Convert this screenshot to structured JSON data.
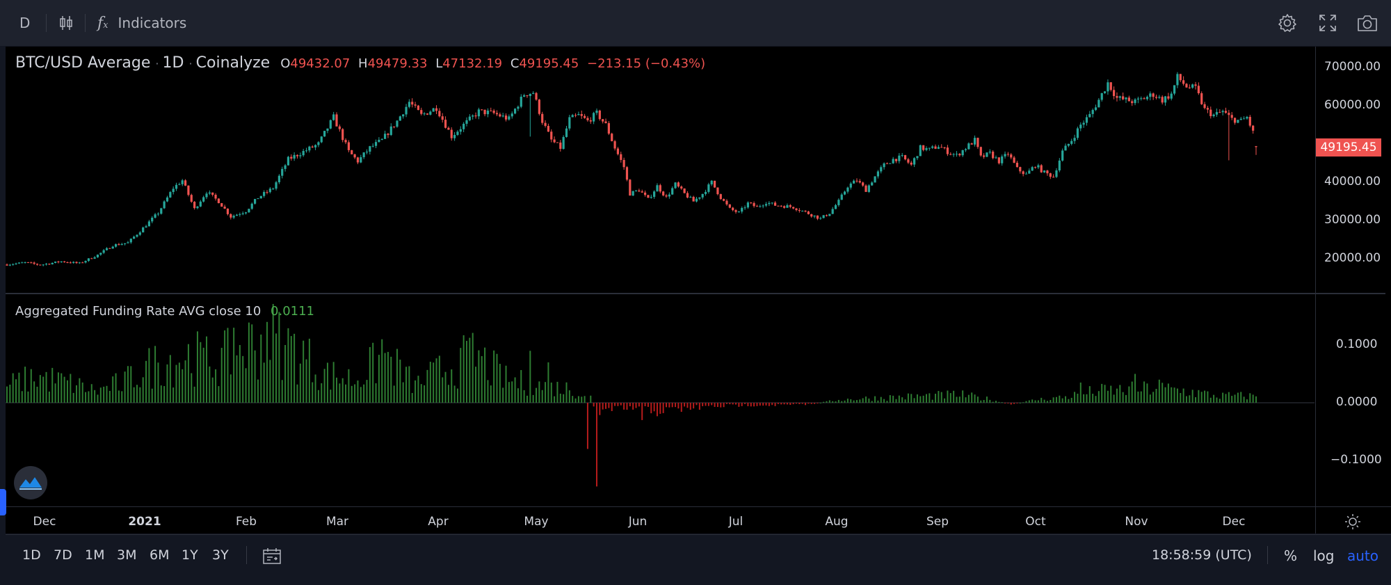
{
  "toolbar": {
    "interval": "D",
    "indicators_label": "Indicators",
    "icons": [
      "candles-icon",
      "fx-icon",
      "gear-icon",
      "fullscreen-icon",
      "camera-icon"
    ]
  },
  "legend": {
    "symbol": "BTC/USD Average",
    "interval": "1D",
    "source": "Coinalyze",
    "o_label": "O",
    "o_value": "49432.07",
    "h_label": "H",
    "h_value": "49479.33",
    "l_label": "L",
    "l_value": "47132.19",
    "c_label": "C",
    "c_value": "49195.45",
    "change": "−213.15 (−0.43%)"
  },
  "funding_legend": {
    "title": "Aggregated Funding Rate AVG close 10",
    "value": "0.0111"
  },
  "last_price_label": "49195.45",
  "colors": {
    "up": "#26a69a",
    "down": "#ef5350",
    "fund_up": "#2e7d32",
    "fund_down": "#b71c1c",
    "accent": "#2962ff"
  },
  "bottombar": {
    "ranges": [
      "1D",
      "7D",
      "1M",
      "3M",
      "6M",
      "1Y",
      "3Y"
    ],
    "clock": "18:58:59 (UTC)",
    "percent": "%",
    "log": "log",
    "auto": "auto"
  },
  "chart_data": [
    {
      "type": "candlestick",
      "title": "BTC/USD Average · 1D · Coinalyze",
      "ylim": [
        12000,
        72000
      ],
      "yticks": [
        "70000.00",
        "60000.00",
        "50000.00",
        "40000.00",
        "30000.00",
        "20000.00"
      ],
      "xticks": [
        "Dec",
        "2021",
        "Feb",
        "Mar",
        "Apr",
        "May",
        "Jun",
        "Jul",
        "Aug",
        "Sep",
        "Oct",
        "Nov",
        "Dec"
      ],
      "anchors_close": [
        [
          0,
          18500
        ],
        [
          6,
          19000
        ],
        [
          11,
          18400
        ],
        [
          18,
          19300
        ],
        [
          24,
          18800
        ],
        [
          30,
          21000
        ],
        [
          35,
          23500
        ],
        [
          40,
          24200
        ],
        [
          45,
          28000
        ],
        [
          50,
          32000
        ],
        [
          55,
          38500
        ],
        [
          58,
          40500
        ],
        [
          62,
          33000
        ],
        [
          66,
          37500
        ],
        [
          70,
          35000
        ],
        [
          74,
          31000
        ],
        [
          79,
          32500
        ],
        [
          83,
          36000
        ],
        [
          88,
          38500
        ],
        [
          93,
          46000
        ],
        [
          98,
          48000
        ],
        [
          103,
          50000
        ],
        [
          108,
          57000
        ],
        [
          113,
          48000
        ],
        [
          116,
          45500
        ],
        [
          120,
          49000
        ],
        [
          124,
          51000
        ],
        [
          129,
          56000
        ],
        [
          133,
          61000
        ],
        [
          137,
          57500
        ],
        [
          142,
          59500
        ],
        [
          147,
          52000
        ],
        [
          151,
          55000
        ],
        [
          156,
          58500
        ],
        [
          161,
          58000
        ],
        [
          166,
          56500
        ],
        [
          171,
          63000
        ],
        [
          174,
          63500
        ],
        [
          177,
          56000
        ],
        [
          180,
          51000
        ],
        [
          183,
          49000
        ],
        [
          186,
          56500
        ],
        [
          189,
          57500
        ],
        [
          192,
          56000
        ],
        [
          195,
          58000
        ],
        [
          198,
          55000
        ],
        [
          201,
          49000
        ],
        [
          204,
          44000
        ],
        [
          206,
          37000
        ],
        [
          209,
          38000
        ],
        [
          212,
          35500
        ],
        [
          215,
          39000
        ],
        [
          218,
          36000
        ],
        [
          221,
          39500
        ],
        [
          224,
          37000
        ],
        [
          227,
          35000
        ],
        [
          230,
          37000
        ],
        [
          233,
          40000
        ],
        [
          236,
          36000
        ],
        [
          239,
          33000
        ],
        [
          242,
          32000
        ],
        [
          245,
          34500
        ],
        [
          248,
          33500
        ],
        [
          251,
          34800
        ],
        [
          254,
          34000
        ],
        [
          257,
          33800
        ],
        [
          260,
          33500
        ],
        [
          263,
          32500
        ],
        [
          266,
          31500
        ],
        [
          269,
          30500
        ],
        [
          272,
          32000
        ],
        [
          275,
          35000
        ],
        [
          278,
          39000
        ],
        [
          281,
          40500
        ],
        [
          284,
          38000
        ],
        [
          287,
          41500
        ],
        [
          290,
          44500
        ],
        [
          293,
          46000
        ],
        [
          296,
          46500
        ],
        [
          299,
          44500
        ],
        [
          302,
          49000
        ],
        [
          305,
          48500
        ],
        [
          308,
          49500
        ],
        [
          311,
          48000
        ],
        [
          314,
          47000
        ],
        [
          317,
          49000
        ],
        [
          320,
          51000
        ],
        [
          322,
          46500
        ],
        [
          325,
          47500
        ],
        [
          328,
          45500
        ],
        [
          331,
          47500
        ],
        [
          334,
          43500
        ],
        [
          337,
          42000
        ],
        [
          340,
          44500
        ],
        [
          343,
          42500
        ],
        [
          346,
          41500
        ],
        [
          349,
          48000
        ],
        [
          352,
          51000
        ],
        [
          355,
          55000
        ],
        [
          358,
          57500
        ],
        [
          361,
          61500
        ],
        [
          364,
          66000
        ],
        [
          367,
          62000
        ],
        [
          370,
          61500
        ],
        [
          373,
          61000
        ],
        [
          376,
          62000
        ],
        [
          379,
          63000
        ],
        [
          382,
          61500
        ],
        [
          385,
          63000
        ],
        [
          387,
          67500
        ],
        [
          390,
          65000
        ],
        [
          393,
          64500
        ],
        [
          396,
          59000
        ],
        [
          399,
          57500
        ],
        [
          402,
          58500
        ],
        [
          405,
          56500
        ],
        [
          408,
          56000
        ],
        [
          410,
          57000
        ],
        [
          412,
          53000
        ],
        [
          413,
          49200
        ]
      ],
      "last_candle": {
        "open": 49432.07,
        "high": 49479.33,
        "low": 47132.19,
        "close": 49195.45
      }
    },
    {
      "type": "bar",
      "title": "Aggregated Funding Rate AVG close 10",
      "ylim": [
        -0.17,
        0.17
      ],
      "yticks": [
        "0.1000",
        "0.0000",
        "−0.1000"
      ],
      "anchors": [
        [
          0,
          0.03
        ],
        [
          10,
          0.045
        ],
        [
          20,
          0.035
        ],
        [
          30,
          0.02
        ],
        [
          40,
          0.04
        ],
        [
          50,
          0.07
        ],
        [
          60,
          0.08
        ],
        [
          70,
          0.07
        ],
        [
          80,
          0.1
        ],
        [
          88,
          0.11
        ],
        [
          96,
          0.09
        ],
        [
          105,
          0.05
        ],
        [
          115,
          0.04
        ],
        [
          125,
          0.08
        ],
        [
          135,
          0.03
        ],
        [
          145,
          0.06
        ],
        [
          155,
          0.08
        ],
        [
          165,
          0.04
        ],
        [
          175,
          0.03
        ],
        [
          185,
          0.025
        ],
        [
          193,
          0.01
        ],
        [
          195,
          -0.02
        ],
        [
          200,
          -0.012
        ],
        [
          208,
          -0.01
        ],
        [
          215,
          -0.015
        ],
        [
          225,
          -0.01
        ],
        [
          235,
          -0.006
        ],
        [
          245,
          -0.004
        ],
        [
          255,
          -0.004
        ],
        [
          265,
          -0.003
        ],
        [
          275,
          0.005
        ],
        [
          285,
          0.008
        ],
        [
          295,
          0.01
        ],
        [
          305,
          0.012
        ],
        [
          315,
          0.014
        ],
        [
          325,
          0.006
        ],
        [
          332,
          -0.003
        ],
        [
          340,
          0.005
        ],
        [
          350,
          0.01
        ],
        [
          360,
          0.02
        ],
        [
          370,
          0.022
        ],
        [
          380,
          0.025
        ],
        [
          390,
          0.02
        ],
        [
          400,
          0.012
        ],
        [
          410,
          0.012
        ],
        [
          413,
          0.011
        ]
      ],
      "spikes": [
        [
          195,
          -0.145
        ],
        [
          192,
          -0.08
        ],
        [
          210,
          -0.03
        ],
        [
          38,
          0.02
        ],
        [
          75,
          0.13
        ],
        [
          86,
          0.14
        ],
        [
          92,
          0.1
        ],
        [
          124,
          0.11
        ],
        [
          150,
          0.095
        ],
        [
          173,
          0.09
        ],
        [
          179,
          0.07
        ],
        [
          355,
          0.035
        ],
        [
          373,
          0.05
        ],
        [
          381,
          0.04
        ]
      ],
      "last_value": 0.0111
    }
  ]
}
